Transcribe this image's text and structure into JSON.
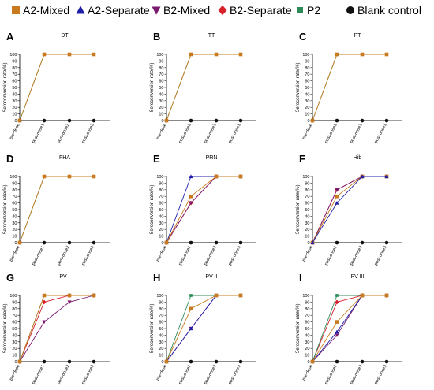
{
  "colors": {
    "A2-Mixed": "#c77b1e",
    "A2-Separate": "#1f1fa8",
    "B2-Mixed": "#7a1a6e",
    "B2-Separate": "#d8202a",
    "P2": "#2e8b57",
    "Blank control": "#111111"
  },
  "legend": [
    {
      "name": "A2-Mixed",
      "marker": "square"
    },
    {
      "name": "A2-Separate",
      "marker": "triangle-up"
    },
    {
      "name": "B2-Mixed",
      "marker": "triangle-down"
    },
    {
      "name": "B2-Separate",
      "marker": "diamond"
    },
    {
      "name": "P2",
      "marker": "square-small"
    },
    {
      "name": "Blank control",
      "marker": "circle"
    }
  ],
  "chart_data": [
    {
      "letter": "A",
      "type": "line",
      "title": "DT",
      "ylabel": "Seroconversion rate(%)",
      "categories": [
        "pre-dose",
        "post-dose1",
        "post-dose2",
        "post-dose3"
      ],
      "ylim": [
        0,
        100
      ],
      "yticks": [
        0,
        10,
        20,
        30,
        40,
        50,
        60,
        70,
        80,
        90,
        100
      ],
      "series": [
        {
          "name": "P2",
          "values": [
            0,
            100,
            100,
            100
          ]
        },
        {
          "name": "Blank control",
          "values": [
            0,
            0,
            0,
            0
          ]
        },
        {
          "name": "A2-Mixed",
          "values": [
            0,
            100,
            100,
            100
          ]
        }
      ]
    },
    {
      "letter": "B",
      "type": "line",
      "title": "TT",
      "ylabel": "Seroconversion rate(%)",
      "categories": [
        "pre-dose",
        "post-dose1",
        "post-dose2",
        "post-dose3"
      ],
      "ylim": [
        0,
        100
      ],
      "yticks": [
        0,
        10,
        20,
        30,
        40,
        50,
        60,
        70,
        80,
        90,
        100
      ],
      "series": [
        {
          "name": "P2",
          "values": [
            0,
            100,
            100,
            100
          ]
        },
        {
          "name": "Blank control",
          "values": [
            0,
            0,
            0,
            0
          ]
        },
        {
          "name": "A2-Mixed",
          "values": [
            0,
            100,
            100,
            100
          ]
        }
      ]
    },
    {
      "letter": "C",
      "type": "line",
      "title": "PT",
      "ylabel": "Seroconversion rate(%)",
      "categories": [
        "pre-dose",
        "post-dose1",
        "post-dose2",
        "post-dose3"
      ],
      "ylim": [
        0,
        100
      ],
      "yticks": [
        0,
        10,
        20,
        30,
        40,
        50,
        60,
        70,
        80,
        90,
        100
      ],
      "series": [
        {
          "name": "P2",
          "values": [
            0,
            100,
            100,
            100
          ]
        },
        {
          "name": "Blank control",
          "values": [
            0,
            0,
            0,
            0
          ]
        },
        {
          "name": "A2-Mixed",
          "values": [
            0,
            100,
            100,
            100
          ]
        }
      ]
    },
    {
      "letter": "D",
      "type": "line",
      "title": "FHA",
      "ylabel": "Seroconversion rate(%)",
      "categories": [
        "pre-dose",
        "post-dose1",
        "post-dose2",
        "post-dose3"
      ],
      "ylim": [
        0,
        100
      ],
      "yticks": [
        0,
        10,
        20,
        30,
        40,
        50,
        60,
        70,
        80,
        90,
        100
      ],
      "series": [
        {
          "name": "P2",
          "values": [
            0,
            100,
            100,
            100
          ]
        },
        {
          "name": "Blank control",
          "values": [
            0,
            0,
            0,
            0
          ]
        },
        {
          "name": "A2-Mixed",
          "values": [
            0,
            100,
            100,
            100
          ]
        }
      ]
    },
    {
      "letter": "E",
      "type": "line",
      "title": "PRN",
      "ylabel": "Seroconversion rate(%)",
      "categories": [
        "pre-dose",
        "post-dose1",
        "post-dose2",
        "post-dose3"
      ],
      "ylim": [
        0,
        100
      ],
      "yticks": [
        0,
        10,
        20,
        30,
        40,
        50,
        60,
        70,
        80,
        90,
        100
      ],
      "series": [
        {
          "name": "P2",
          "values": [
            0,
            0,
            0,
            0
          ]
        },
        {
          "name": "Blank control",
          "values": [
            0,
            0,
            0,
            0
          ]
        },
        {
          "name": "A2-Separate",
          "values": [
            0,
            100,
            100,
            100
          ]
        },
        {
          "name": "B2-Separate",
          "values": [
            0,
            60,
            100,
            100
          ]
        },
        {
          "name": "B2-Mixed",
          "values": [
            0,
            60,
            100,
            100
          ]
        },
        {
          "name": "A2-Mixed",
          "values": [
            0,
            70,
            100,
            100
          ]
        }
      ]
    },
    {
      "letter": "F",
      "type": "line",
      "title": "Hib",
      "ylabel": "Seroconversion rate(%)",
      "categories": [
        "pre-dose",
        "post-dose1",
        "post-dose2",
        "post-dose3"
      ],
      "ylim": [
        0,
        100
      ],
      "yticks": [
        0,
        10,
        20,
        30,
        40,
        50,
        60,
        70,
        80,
        90,
        100
      ],
      "series": [
        {
          "name": "Blank control",
          "values": [
            0,
            0,
            0,
            0
          ]
        },
        {
          "name": "B2-Separate",
          "values": [
            0,
            80,
            100,
            100
          ]
        },
        {
          "name": "B2-Mixed",
          "values": [
            0,
            80,
            100,
            100
          ]
        },
        {
          "name": "A2-Mixed",
          "values": [
            0,
            70,
            100,
            100
          ]
        },
        {
          "name": "A2-Separate",
          "values": [
            0,
            60,
            100,
            100
          ]
        }
      ]
    },
    {
      "letter": "G",
      "type": "line",
      "title": "PV I",
      "ylabel": "Seroconversion rate(%)",
      "categories": [
        "pre-dose",
        "post-dose1",
        "post-dose2",
        "post-dose3"
      ],
      "ylim": [
        0,
        100
      ],
      "yticks": [
        0,
        10,
        20,
        30,
        40,
        50,
        60,
        70,
        80,
        90,
        100
      ],
      "series": [
        {
          "name": "Blank control",
          "values": [
            0,
            0,
            0,
            0
          ]
        },
        {
          "name": "B2-Mixed",
          "values": [
            0,
            60,
            90,
            100
          ]
        },
        {
          "name": "B2-Separate",
          "values": [
            0,
            90,
            100,
            100
          ]
        },
        {
          "name": "P2",
          "values": [
            0,
            100,
            100,
            100
          ]
        },
        {
          "name": "A2-Mixed",
          "values": [
            0,
            100,
            100,
            100
          ]
        }
      ]
    },
    {
      "letter": "H",
      "type": "line",
      "title": "PV II",
      "ylabel": "Seroconversion rate(%)",
      "categories": [
        "pre-dose",
        "post-dose1",
        "post-dose2",
        "post-dose3"
      ],
      "ylim": [
        0,
        100
      ],
      "yticks": [
        0,
        10,
        20,
        30,
        40,
        50,
        60,
        70,
        80,
        90,
        100
      ],
      "series": [
        {
          "name": "Blank control",
          "values": [
            0,
            0,
            0,
            0
          ]
        },
        {
          "name": "B2-Mixed",
          "values": [
            0,
            50,
            100,
            100
          ]
        },
        {
          "name": "A2-Separate",
          "values": [
            0,
            50,
            100,
            100
          ]
        },
        {
          "name": "P2",
          "values": [
            0,
            100,
            100,
            100
          ]
        },
        {
          "name": "A2-Mixed",
          "values": [
            0,
            80,
            100,
            100
          ]
        }
      ]
    },
    {
      "letter": "I",
      "type": "line",
      "title": "PV III",
      "ylabel": "Seroconversion rate(%)",
      "categories": [
        "pre-dose",
        "post-dose1",
        "post-dose2",
        "post-dose3"
      ],
      "ylim": [
        0,
        100
      ],
      "yticks": [
        0,
        10,
        20,
        30,
        40,
        50,
        60,
        70,
        80,
        90,
        100
      ],
      "series": [
        {
          "name": "Blank control",
          "values": [
            0,
            0,
            0,
            0
          ]
        },
        {
          "name": "B2-Mixed",
          "values": [
            0,
            40,
            100,
            100
          ]
        },
        {
          "name": "A2-Separate",
          "values": [
            0,
            45,
            100,
            100
          ]
        },
        {
          "name": "B2-Separate",
          "values": [
            0,
            90,
            100,
            100
          ]
        },
        {
          "name": "P2",
          "values": [
            0,
            100,
            100,
            100
          ]
        },
        {
          "name": "A2-Mixed",
          "values": [
            0,
            60,
            100,
            100
          ]
        }
      ]
    }
  ]
}
